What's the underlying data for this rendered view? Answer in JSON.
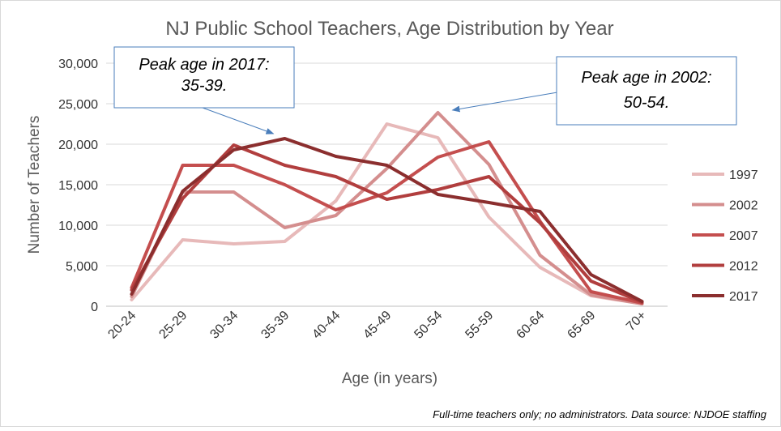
{
  "chart_data": {
    "type": "line",
    "title": "NJ Public School Teachers, Age Distribution by Year",
    "xlabel": "Age (in years)",
    "ylabel": "Number of Teachers",
    "categories": [
      "20-24",
      "25-29",
      "30-34",
      "35-39",
      "40-44",
      "45-49",
      "50-54",
      "55-59",
      "60-64",
      "65-69",
      "70+"
    ],
    "ylim": [
      0,
      30000
    ],
    "yticks": [
      0,
      5000,
      10000,
      15000,
      20000,
      25000,
      30000
    ],
    "ytick_labels": [
      "0",
      "5,000",
      "10,000",
      "15,000",
      "20,000",
      "25,000",
      "30,000"
    ],
    "grid": true,
    "legend_position": "right",
    "series": [
      {
        "name": "1997",
        "color": "#e7b9b9",
        "values": [
          800,
          8200,
          7700,
          8000,
          13000,
          22500,
          20800,
          11000,
          4800,
          1300,
          300
        ]
      },
      {
        "name": "2002",
        "color": "#d48e8e",
        "values": [
          1200,
          14100,
          14100,
          9700,
          11200,
          17000,
          23900,
          17500,
          6300,
          1400,
          300
        ]
      },
      {
        "name": "2007",
        "color": "#c44e4e",
        "values": [
          2300,
          17400,
          17400,
          15000,
          11900,
          14000,
          18400,
          20300,
          10500,
          1800,
          400
        ]
      },
      {
        "name": "2012",
        "color": "#b13e3e",
        "values": [
          2000,
          13300,
          19900,
          17400,
          16000,
          13200,
          14400,
          16000,
          10300,
          3100,
          500
        ]
      },
      {
        "name": "2017",
        "color": "#8b2e2e",
        "values": [
          1500,
          14200,
          19300,
          20700,
          18500,
          17400,
          13800,
          12800,
          11700,
          3900,
          600
        ]
      }
    ],
    "annotations": [
      {
        "line1": "Peak age in 2017:",
        "line2": "35-39.",
        "points_to": {
          "x": "35-39",
          "y": 20700
        }
      },
      {
        "line1": "Peak age in 2002:",
        "line2": "50-54.",
        "points_to": {
          "x": "50-54",
          "y": 23900
        }
      }
    ],
    "footnote": "Full-time teachers only; no administrators. Data source: NJDOE staffing"
  }
}
